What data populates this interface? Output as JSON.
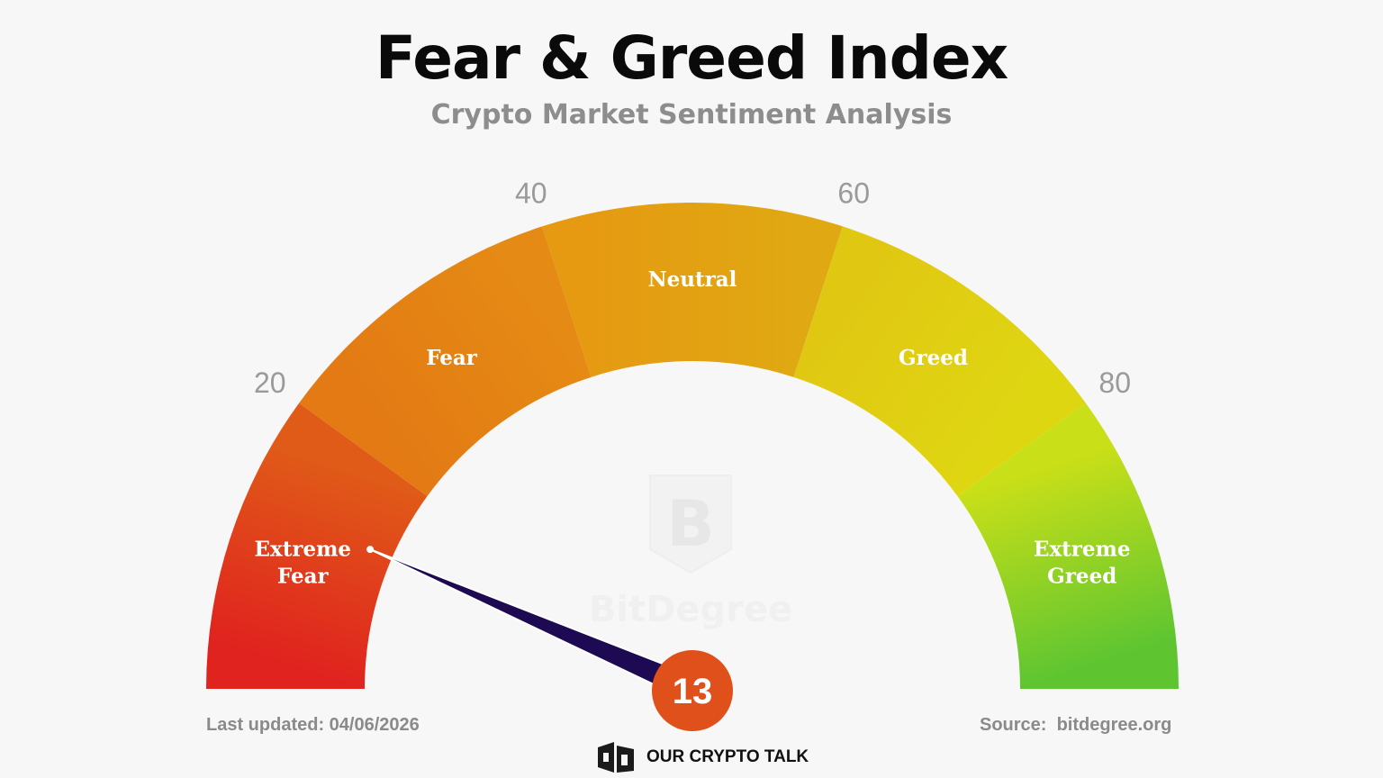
{
  "header": {
    "title": "Fear & Greed Index",
    "subtitle": "Crypto Market Sentiment Analysis"
  },
  "chart_data": {
    "type": "gauge",
    "title": "Fear & Greed Index",
    "subtitle": "Crypto Market Sentiment Analysis",
    "range": [
      0,
      100
    ],
    "value": 13,
    "value_label": "13",
    "ticks": [
      {
        "value": 20,
        "label": "20"
      },
      {
        "value": 40,
        "label": "40"
      },
      {
        "value": 60,
        "label": "60"
      },
      {
        "value": 80,
        "label": "80"
      }
    ],
    "segments": [
      {
        "label": "Extreme Fear",
        "lines": [
          "Extreme",
          "Fear"
        ],
        "from": 0,
        "to": 20,
        "color_start": "#e0231f",
        "color_end": "#e05a18"
      },
      {
        "label": "Fear",
        "lines": [
          "Fear"
        ],
        "from": 20,
        "to": 40,
        "color_start": "#e37a14",
        "color_end": "#e58a14"
      },
      {
        "label": "Neutral",
        "lines": [
          "Neutral"
        ],
        "from": 40,
        "to": 60,
        "color_start": "#e59a12",
        "color_end": "#e0a812"
      },
      {
        "label": "Greed",
        "lines": [
          "Greed"
        ],
        "from": 60,
        "to": 80,
        "color_start": "#e0c812",
        "color_end": "#dfd612"
      },
      {
        "label": "Extreme Greed",
        "lines": [
          "Extreme",
          "Greed"
        ],
        "from": 80,
        "to": 100,
        "color_start": "#c9df18",
        "color_end": "#5ec531"
      }
    ],
    "needle_color": "#1e0a52",
    "badge_color": "#e0501a"
  },
  "footer": {
    "last_updated": "Last updated: 04/06/2026",
    "source": "Source:  bitdegree.org",
    "watermark": "BitDegree",
    "brand": "OUR CRYPTO TALK"
  },
  "icons": {
    "watermark": "bitdegree-logo-icon",
    "brand": "our-crypto-talk-logo-icon"
  }
}
